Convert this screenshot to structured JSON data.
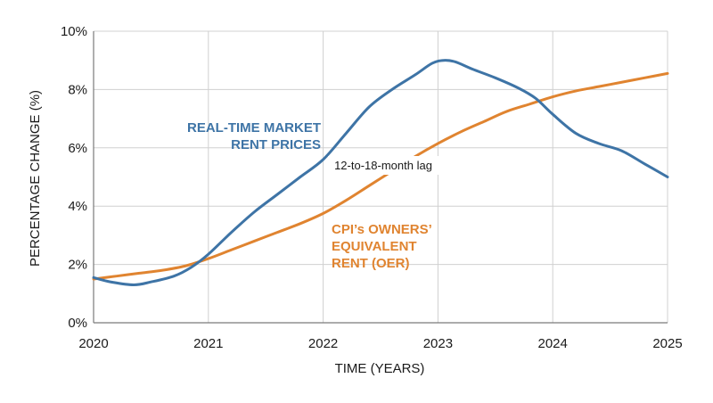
{
  "chart_data": {
    "type": "line",
    "xlabel": "TIME (YEARS)",
    "ylabel": "PERCENTAGE CHANGE (%)",
    "xlim": [
      2020,
      2025
    ],
    "ylim": [
      0,
      10
    ],
    "x_ticks": [
      2020,
      2021,
      2022,
      2023,
      2024,
      2025
    ],
    "x_tick_labels": [
      "2020",
      "2021",
      "2022",
      "2023",
      "2024",
      "2025"
    ],
    "y_ticks": [
      0,
      2,
      4,
      6,
      8,
      10
    ],
    "y_tick_labels": [
      "0%",
      "2%",
      "4%",
      "6%",
      "8%",
      "10%"
    ],
    "grid": true,
    "colors": {
      "market": "#3e74a6",
      "oer": "#e08430",
      "grid": "#d0d0d0",
      "axis": "#7a7a7a"
    },
    "series": [
      {
        "key": "market",
        "label_lines": [
          "REAL-TIME MARKET",
          "RENT PRICES"
        ],
        "points": [
          [
            2020.0,
            1.55
          ],
          [
            2020.15,
            1.4
          ],
          [
            2020.35,
            1.3
          ],
          [
            2020.5,
            1.4
          ],
          [
            2020.7,
            1.6
          ],
          [
            2020.85,
            1.9
          ],
          [
            2021.0,
            2.35
          ],
          [
            2021.2,
            3.1
          ],
          [
            2021.4,
            3.8
          ],
          [
            2021.6,
            4.4
          ],
          [
            2021.8,
            5.0
          ],
          [
            2022.0,
            5.6
          ],
          [
            2022.2,
            6.5
          ],
          [
            2022.4,
            7.4
          ],
          [
            2022.6,
            8.0
          ],
          [
            2022.8,
            8.5
          ],
          [
            2022.95,
            8.9
          ],
          [
            2023.05,
            9.0
          ],
          [
            2023.15,
            8.95
          ],
          [
            2023.3,
            8.7
          ],
          [
            2023.5,
            8.4
          ],
          [
            2023.7,
            8.05
          ],
          [
            2023.85,
            7.7
          ],
          [
            2024.0,
            7.15
          ],
          [
            2024.2,
            6.5
          ],
          [
            2024.4,
            6.15
          ],
          [
            2024.6,
            5.9
          ],
          [
            2024.8,
            5.45
          ],
          [
            2025.0,
            5.0
          ]
        ]
      },
      {
        "key": "oer",
        "label_lines": [
          "CPI’s OWNERS’",
          "EQUIVALENT",
          "RENT (OER)"
        ],
        "points": [
          [
            2020.0,
            1.5
          ],
          [
            2020.2,
            1.6
          ],
          [
            2020.4,
            1.7
          ],
          [
            2020.6,
            1.8
          ],
          [
            2020.8,
            1.95
          ],
          [
            2021.0,
            2.2
          ],
          [
            2021.2,
            2.5
          ],
          [
            2021.4,
            2.8
          ],
          [
            2021.6,
            3.1
          ],
          [
            2021.8,
            3.4
          ],
          [
            2022.0,
            3.75
          ],
          [
            2022.2,
            4.2
          ],
          [
            2022.4,
            4.7
          ],
          [
            2022.6,
            5.2
          ],
          [
            2022.8,
            5.7
          ],
          [
            2023.0,
            6.15
          ],
          [
            2023.2,
            6.55
          ],
          [
            2023.4,
            6.9
          ],
          [
            2023.6,
            7.25
          ],
          [
            2023.8,
            7.5
          ],
          [
            2024.0,
            7.75
          ],
          [
            2024.2,
            7.95
          ],
          [
            2024.4,
            8.1
          ],
          [
            2024.6,
            8.25
          ],
          [
            2024.8,
            8.4
          ],
          [
            2025.0,
            8.55
          ]
        ]
      }
    ],
    "annotation": {
      "text": "12-to-18-month lag"
    }
  }
}
